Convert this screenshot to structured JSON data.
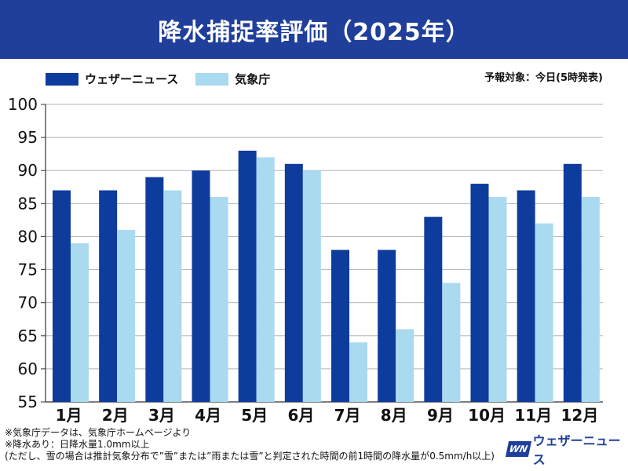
{
  "header": {
    "title": "降水捕捉率評価（2025年）"
  },
  "forecast_note": "予報対象：今日(5時発表)",
  "legend": [
    {
      "label": "ウェザーニュース",
      "color": "#0e3c9c"
    },
    {
      "label": "気象庁",
      "color": "#a9daf0"
    }
  ],
  "chart_data": {
    "type": "bar",
    "title": "降水捕捉率評価（2025年）",
    "categories": [
      "1月",
      "2月",
      "3月",
      "4月",
      "5月",
      "6月",
      "7月",
      "8月",
      "9月",
      "10月",
      "11月",
      "12月"
    ],
    "series": [
      {
        "name": "ウェザーニュース",
        "color": "#0e3c9c",
        "values": [
          87,
          87,
          89,
          90,
          93,
          91,
          78,
          78,
          83,
          88,
          87,
          91
        ]
      },
      {
        "name": "気象庁",
        "color": "#a9daf0",
        "values": [
          79,
          81,
          87,
          86,
          92,
          90,
          64,
          66,
          73,
          86,
          82,
          86
        ]
      }
    ],
    "ylim": [
      55,
      100
    ],
    "yticks": [
      55,
      60,
      65,
      70,
      75,
      80,
      85,
      90,
      95,
      100
    ],
    "xlabel": "",
    "ylabel": ""
  },
  "notes": [
    "※気象庁データは、気象庁ホームページより",
    "※降水あり：日降水量1.0mm以上",
    "(ただし、雪の場合は推計気象分布で”雪”または”雨または雪”と判定された時間の前1時間の降水量が0.5mm/h以上)"
  ],
  "logo": {
    "mark": "WN",
    "text": "ウェザーニュース"
  }
}
